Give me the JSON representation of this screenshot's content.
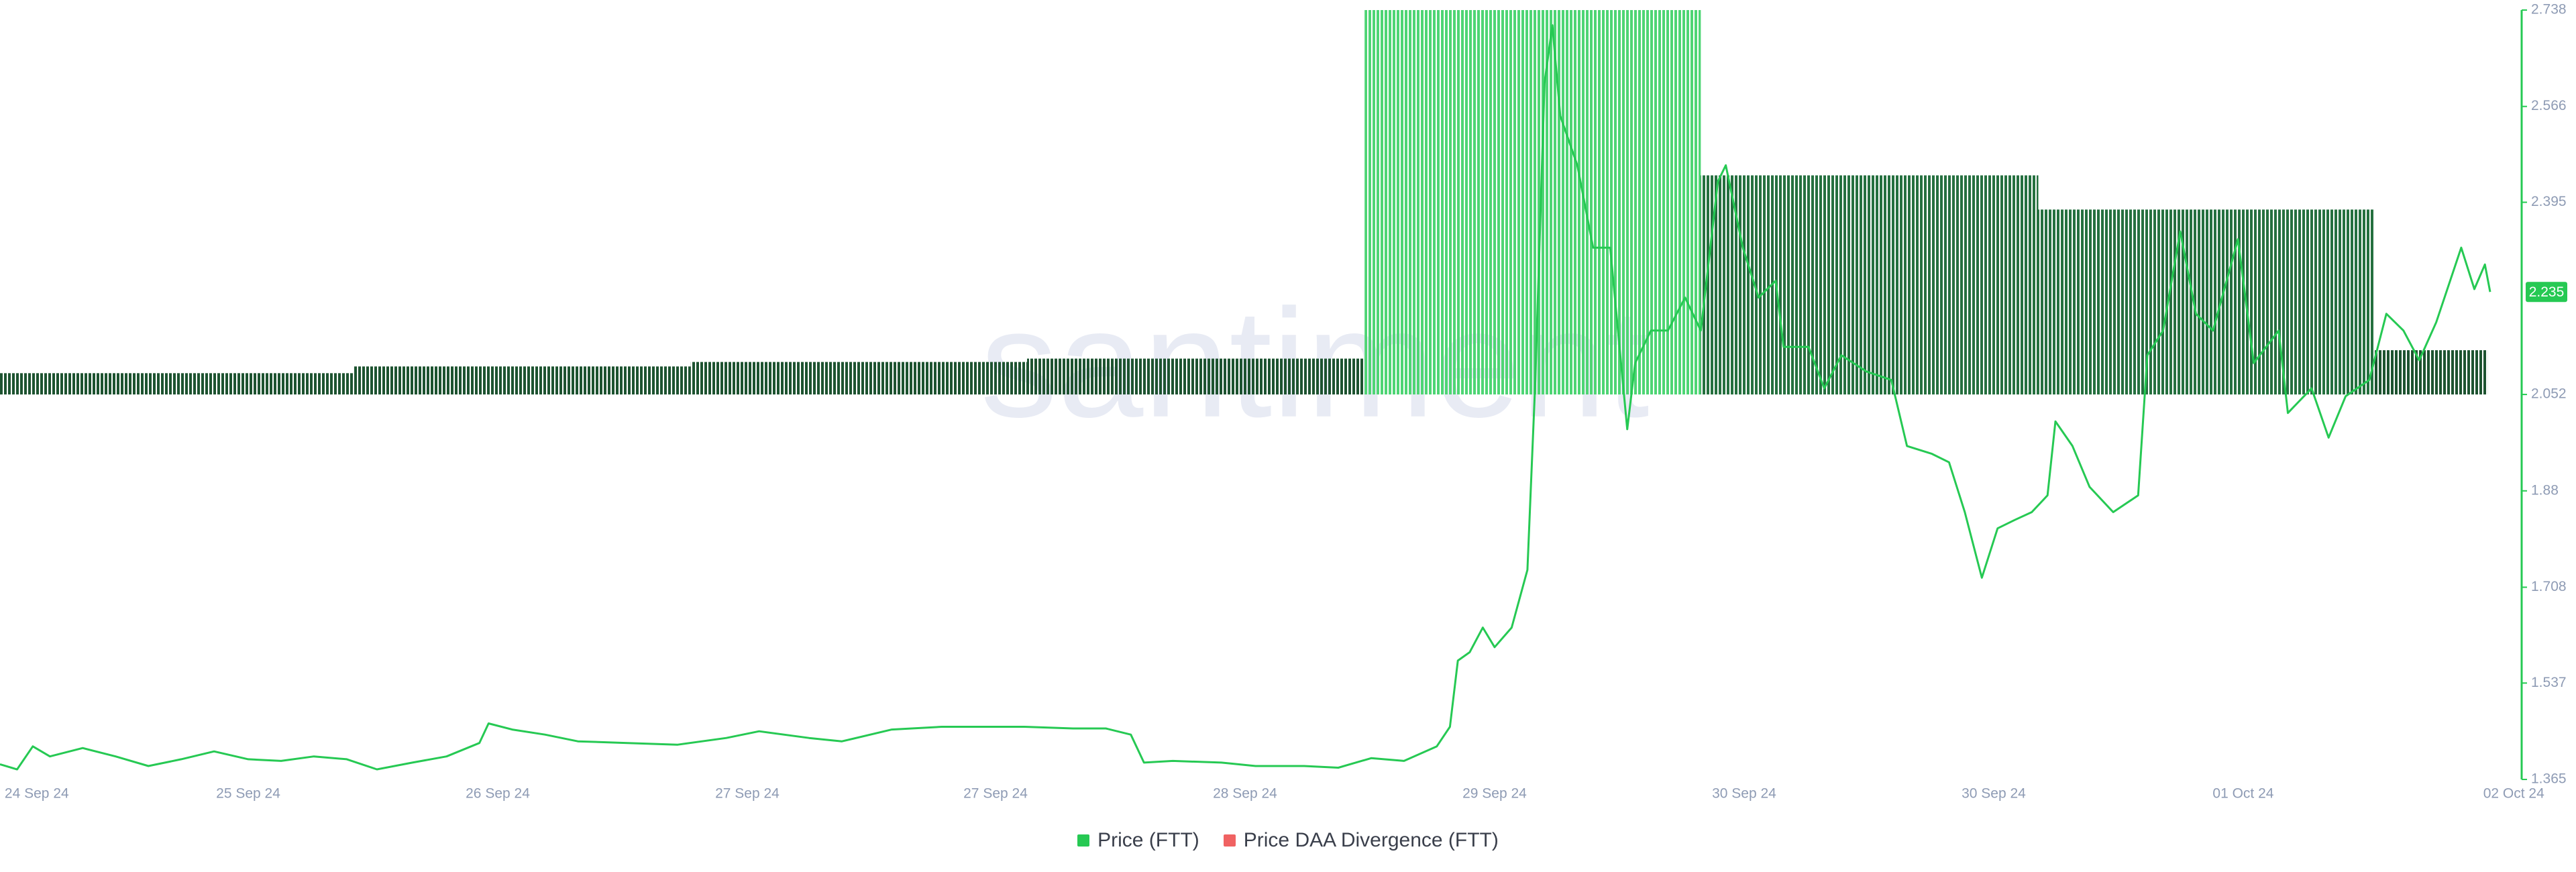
{
  "chart_data": {
    "type": "line",
    "watermark": "santiment",
    "xlim": [
      0,
      192
    ],
    "xticks": [
      {
        "value": 2.8,
        "label": "24 Sep 24"
      },
      {
        "value": 18.9,
        "label": "25 Sep 24"
      },
      {
        "value": 37.9,
        "label": "26 Sep 24"
      },
      {
        "value": 56.9,
        "label": "27 Sep 24"
      },
      {
        "value": 75.8,
        "label": "27 Sep 24"
      },
      {
        "value": 94.8,
        "label": "28 Sep 24"
      },
      {
        "value": 113.8,
        "label": "29 Sep 24"
      },
      {
        "value": 132.8,
        "label": "30 Sep 24"
      },
      {
        "value": 151.8,
        "label": "30 Sep 24"
      },
      {
        "value": 170.8,
        "label": "01 Oct 24"
      },
      {
        "value": 191.4,
        "label": "02 Oct 24"
      }
    ],
    "ylim": [
      1.365,
      2.738
    ],
    "yticks": [
      1.365,
      1.537,
      1.708,
      1.88,
      2.052,
      2.395,
      2.566,
      2.738
    ],
    "series": [
      {
        "name": "Price (FTT)",
        "color": "#26c953",
        "x": [
          0,
          1.3,
          2.5,
          3.8,
          6.3,
          8.8,
          11.3,
          13.8,
          16.3,
          18.9,
          21.4,
          23.9,
          26.4,
          28.7,
          31.4,
          34.0,
          36.5,
          37.2,
          39.0,
          41.5,
          44.0,
          47.8,
          51.6,
          55.3,
          57.8,
          61.6,
          64.1,
          67.9,
          71.7,
          75.4,
          78.0,
          81.7,
          84.2,
          86.1,
          87.1,
          89.3,
          93.0,
          95.6,
          99.3,
          101.9,
          104.4,
          106.9,
          109.4,
          110.4,
          111.0,
          111.9,
          112.9,
          113.8,
          115.1,
          116.3,
          116.9,
          117.6,
          118.2,
          118.8,
          120.1,
          121.3,
          122.6,
          123.9,
          124.5,
          125.7,
          127.0,
          128.3,
          129.5,
          130.8,
          131.4,
          132.7,
          133.9,
          135.2,
          135.8,
          137.7,
          138.9,
          140.2,
          142.1,
          144.0,
          145.2,
          147.1,
          148.4,
          149.6,
          150.9,
          152.1,
          153.4,
          154.7,
          155.9,
          156.5,
          157.8,
          159.1,
          160.9,
          162.8,
          163.5,
          164.7,
          166.0,
          167.2,
          168.5,
          170.4,
          171.6,
          173.5,
          174.2,
          176.0,
          177.3,
          178.6,
          180.4,
          181.7,
          183.0,
          184.2,
          185.5,
          187.4,
          188.4,
          189.2,
          189.6
        ],
        "values": [
          1.392,
          1.383,
          1.424,
          1.406,
          1.421,
          1.406,
          1.389,
          1.401,
          1.415,
          1.401,
          1.398,
          1.406,
          1.401,
          1.383,
          1.395,
          1.406,
          1.43,
          1.465,
          1.454,
          1.445,
          1.433,
          1.43,
          1.427,
          1.439,
          1.451,
          1.439,
          1.433,
          1.454,
          1.459,
          1.459,
          1.459,
          1.456,
          1.456,
          1.445,
          1.395,
          1.398,
          1.395,
          1.389,
          1.389,
          1.386,
          1.403,
          1.398,
          1.424,
          1.459,
          1.577,
          1.592,
          1.636,
          1.601,
          1.636,
          1.739,
          2.078,
          2.608,
          2.711,
          2.549,
          2.461,
          2.314,
          2.314,
          1.99,
          2.108,
          2.166,
          2.166,
          2.225,
          2.166,
          2.432,
          2.461,
          2.314,
          2.225,
          2.255,
          2.137,
          2.137,
          2.063,
          2.122,
          2.093,
          2.078,
          1.96,
          1.946,
          1.931,
          1.842,
          1.725,
          1.813,
          1.828,
          1.842,
          1.872,
          2.004,
          1.96,
          1.887,
          1.842,
          1.872,
          2.122,
          2.166,
          2.343,
          2.196,
          2.166,
          2.329,
          2.108,
          2.166,
          2.019,
          2.063,
          1.975,
          2.049,
          2.078,
          2.196,
          2.166,
          2.113,
          2.181,
          2.314,
          2.24,
          2.284,
          2.235
        ]
      },
      {
        "name": "Price DAA Divergence (FTT)",
        "color": "#f06262",
        "type": "bar",
        "bar_base": 2.052,
        "bins": [
          0,
          26.9,
          52.6,
          78.2,
          103.9,
          129.5,
          155.2,
          180.8,
          189.4
        ],
        "values": [
          2.09,
          2.102,
          2.11,
          2.116,
          2.738,
          2.443,
          2.382,
          2.131
        ],
        "colors": [
          "#1d5330",
          "#1d5330",
          "#1d5330",
          "#1d5330",
          "#4ed574",
          "#25703f",
          "#25703f",
          "#1d5330"
        ]
      }
    ]
  }
}
